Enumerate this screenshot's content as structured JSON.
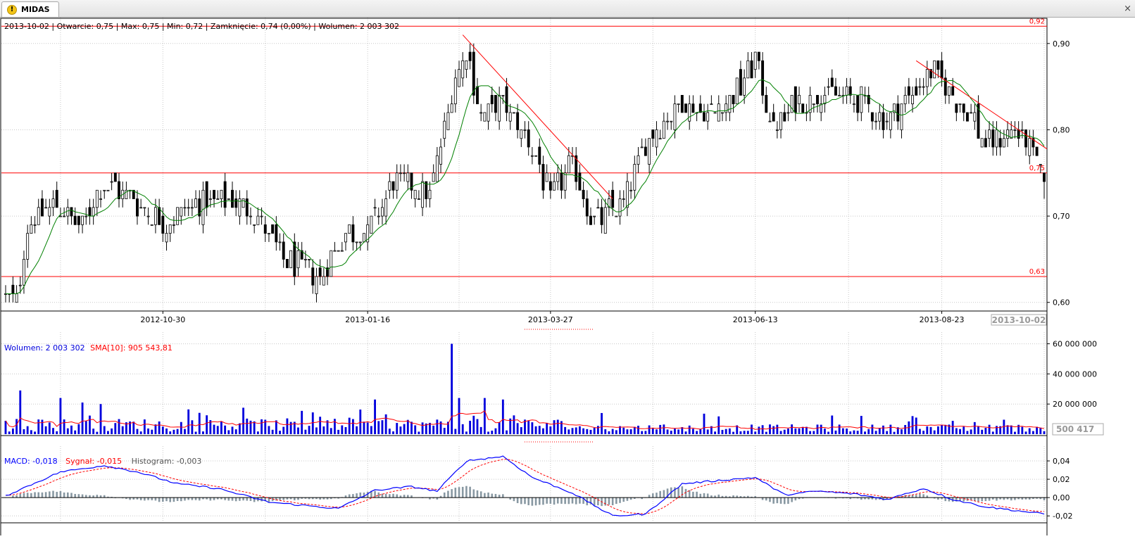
{
  "tab": {
    "title": "MIDAS",
    "close_glyph": "×"
  },
  "header": {
    "info": "2013-10-02 | Otwarcie: 0,75 | Max: 0,75 | Min: 0,72 | Zamknięcie: 0,74 (0,00%)  | Wolumen: 2 003 302"
  },
  "volume_legend": {
    "volume_label": "Wolumen: 2 003 302",
    "sma_label": "SMA[10]: 905 543,81"
  },
  "macd_legend": {
    "macd_label": "MACD: -0,018",
    "signal_label": "Sygnał: -0,015",
    "hist_label": "Histogram: -0,003"
  },
  "colors": {
    "candle": "#000000",
    "ma": "#008000",
    "hline": "#ff0000",
    "volume": "#0000dd",
    "sma": "#ff0000",
    "macd": "#0000ff",
    "signal": "#ff0000",
    "hist": "#8898a2",
    "grid": "#c8c8c8"
  },
  "chart_data": [
    {
      "type": "candlestick",
      "panel": "price",
      "x_range": [
        "2012-08-30",
        "2013-10-02"
      ],
      "ylim": [
        0.59,
        0.93
      ],
      "y_ticks": [
        0.6,
        0.7,
        0.8,
        0.9
      ],
      "y_tick_labels": [
        "0,60",
        "0,70",
        "0,80",
        "0,90"
      ],
      "x_ticks": [
        "2012-10-30",
        "2013-01-16",
        "2013-03-27",
        "2013-06-13",
        "2013-08-23"
      ],
      "last_date_label": "2013-10-02",
      "horizontal_lines": [
        {
          "value": 0.92,
          "label": "0,92"
        },
        {
          "value": 0.75,
          "label": "0,75"
        },
        {
          "value": 0.63,
          "label": "0,63"
        }
      ],
      "trendlines": [
        {
          "from": [
            "2013-02-21",
            0.91
          ],
          "to": [
            "2013-04-19",
            0.72
          ]
        },
        {
          "from": [
            "2013-08-14",
            0.88
          ],
          "to": [
            "2013-10-02",
            0.78
          ]
        }
      ],
      "close_anchors": [
        [
          "2012-08-30",
          0.61
        ],
        [
          "2012-09-04",
          0.6
        ],
        [
          "2012-09-07",
          0.69
        ],
        [
          "2012-09-18",
          0.71
        ],
        [
          "2012-09-28",
          0.69
        ],
        [
          "2012-10-08",
          0.74
        ],
        [
          "2012-10-18",
          0.72
        ],
        [
          "2012-10-30",
          0.69
        ],
        [
          "2012-11-08",
          0.71
        ],
        [
          "2012-11-20",
          0.72
        ],
        [
          "2012-12-03",
          0.71
        ],
        [
          "2012-12-14",
          0.65
        ],
        [
          "2012-12-28",
          0.63
        ],
        [
          "2013-01-08",
          0.68
        ],
        [
          "2013-01-16",
          0.68
        ],
        [
          "2013-01-25",
          0.74
        ],
        [
          "2013-02-01",
          0.74
        ],
        [
          "2013-02-08",
          0.72
        ],
        [
          "2013-02-14",
          0.8
        ],
        [
          "2013-02-19",
          0.86
        ],
        [
          "2013-02-22",
          0.89
        ],
        [
          "2013-02-28",
          0.82
        ],
        [
          "2013-03-08",
          0.83
        ],
        [
          "2013-03-20",
          0.78
        ],
        [
          "2013-03-27",
          0.72
        ],
        [
          "2013-04-04",
          0.76
        ],
        [
          "2013-04-12",
          0.69
        ],
        [
          "2013-04-24",
          0.72
        ],
        [
          "2013-05-06",
          0.8
        ],
        [
          "2013-05-16",
          0.83
        ],
        [
          "2013-05-28",
          0.82
        ],
        [
          "2013-06-07",
          0.85
        ],
        [
          "2013-06-13",
          0.88
        ],
        [
          "2013-06-20",
          0.8
        ],
        [
          "2013-06-28",
          0.83
        ],
        [
          "2013-07-08",
          0.84
        ],
        [
          "2013-07-18",
          0.84
        ],
        [
          "2013-07-26",
          0.83
        ],
        [
          "2013-08-02",
          0.81
        ],
        [
          "2013-08-12",
          0.84
        ],
        [
          "2013-08-20",
          0.87
        ],
        [
          "2013-08-28",
          0.84
        ],
        [
          "2013-09-05",
          0.81
        ],
        [
          "2013-09-10",
          0.78
        ],
        [
          "2013-09-20",
          0.8
        ],
        [
          "2013-09-26",
          0.78
        ],
        [
          "2013-10-02",
          0.74
        ]
      ]
    },
    {
      "type": "bar",
      "panel": "volume",
      "ylim": [
        0,
        64000000
      ],
      "y_ticks": [
        20000000,
        40000000,
        60000000
      ],
      "y_tick_labels": [
        "20 000 000",
        "40 000 000",
        "60 000 000"
      ],
      "current_value_box": "500 417",
      "series": [
        {
          "name": "Wolumen",
          "color": "#0000dd"
        },
        {
          "name": "SMA[10]",
          "color": "#ff0000"
        }
      ],
      "spikes": [
        [
          "2012-09-05",
          29000000
        ],
        [
          "2012-09-20",
          24000000
        ],
        [
          "2012-09-28",
          21000000
        ],
        [
          "2012-10-05",
          20000000
        ],
        [
          "2013-01-20",
          23000000
        ],
        [
          "2013-02-18",
          60000000
        ],
        [
          "2013-02-20",
          24000000
        ],
        [
          "2013-03-01",
          24000000
        ],
        [
          "2013-03-08",
          23000000
        ],
        [
          "2013-08-14",
          11000000
        ],
        [
          "2013-09-05",
          8000000
        ]
      ],
      "last_value": 2003302,
      "sma_last": 905543.81
    },
    {
      "type": "line",
      "panel": "macd",
      "ylim": [
        -0.026,
        0.05
      ],
      "y_ticks": [
        -0.02,
        0,
        0.02,
        0.04
      ],
      "y_tick_labels": [
        "-0,02",
        "0,00",
        "0,02",
        "0,04"
      ],
      "series": [
        {
          "name": "MACD",
          "color": "#0000ff",
          "last": -0.018
        },
        {
          "name": "Sygnał",
          "color": "#ff0000",
          "last": -0.015
        },
        {
          "name": "Histogram",
          "color": "#8898a2",
          "last": -0.003
        }
      ],
      "macd_anchors": [
        [
          "2012-08-30",
          0.002
        ],
        [
          "2012-09-20",
          0.028
        ],
        [
          "2012-10-08",
          0.035
        ],
        [
          "2012-10-20",
          0.028
        ],
        [
          "2012-11-05",
          0.015
        ],
        [
          "2012-11-20",
          0.01
        ],
        [
          "2012-12-10",
          -0.005
        ],
        [
          "2013-01-05",
          -0.012
        ],
        [
          "2013-01-20",
          0.008
        ],
        [
          "2013-02-01",
          0.012
        ],
        [
          "2013-02-12",
          0.007
        ],
        [
          "2013-02-22",
          0.04
        ],
        [
          "2013-03-08",
          0.045
        ],
        [
          "2013-03-20",
          0.022
        ],
        [
          "2013-04-04",
          0.005
        ],
        [
          "2013-04-19",
          -0.02
        ],
        [
          "2013-05-02",
          -0.018
        ],
        [
          "2013-05-16",
          0.015
        ],
        [
          "2013-06-01",
          0.019
        ],
        [
          "2013-06-13",
          0.022
        ],
        [
          "2013-06-25",
          0.003
        ],
        [
          "2013-07-08",
          0.007
        ],
        [
          "2013-07-22",
          0.004
        ],
        [
          "2013-08-02",
          -0.002
        ],
        [
          "2013-08-16",
          0.01
        ],
        [
          "2013-08-28",
          -0.002
        ],
        [
          "2013-09-10",
          -0.01
        ],
        [
          "2013-10-02",
          -0.018
        ]
      ]
    }
  ]
}
